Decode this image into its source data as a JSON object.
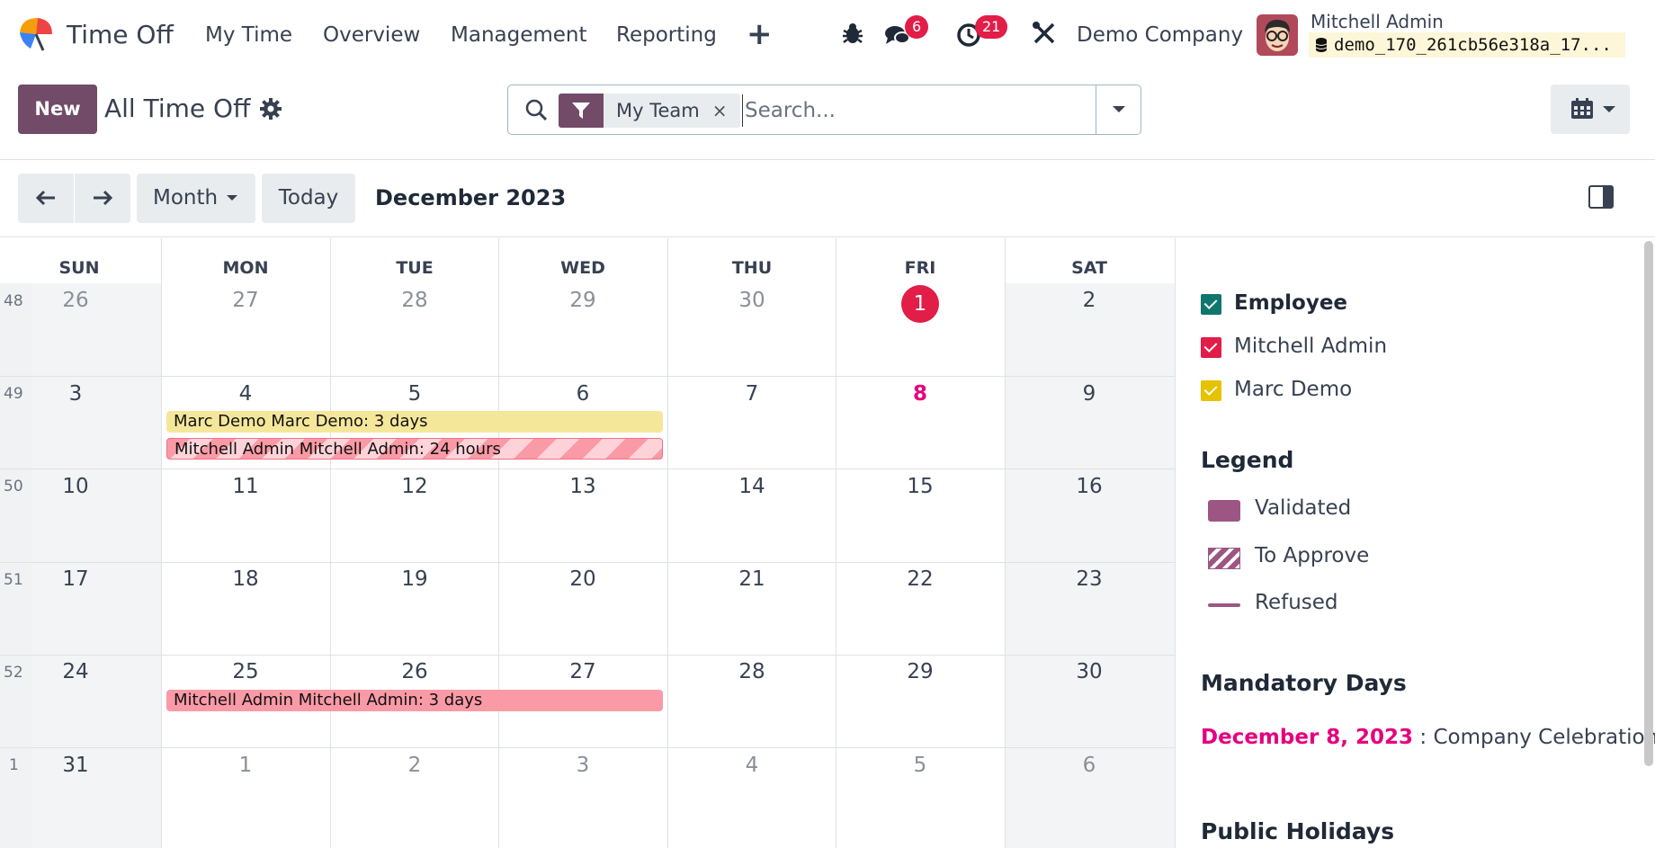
{
  "nav": {
    "app_name": "Time Off",
    "menu": [
      "My Time",
      "Overview",
      "Management",
      "Reporting"
    ],
    "plus": "+",
    "messages_badge": "6",
    "activities_badge": "21",
    "company": "Demo Company",
    "user": "Mitchell Admin",
    "db": "demo_170_261cb56e318a_17..."
  },
  "control": {
    "new_label": "New",
    "title": "All Time Off",
    "facet": "My Team",
    "facet_remove": "×",
    "search_placeholder": "Search..."
  },
  "toolbar": {
    "scale": "Month",
    "today": "Today",
    "period": "December 2023"
  },
  "calendar": {
    "weekdays": [
      "SUN",
      "MON",
      "TUE",
      "WED",
      "THU",
      "FRI",
      "SAT"
    ],
    "weeks": [
      {
        "num": "48",
        "days": [
          "26",
          "27",
          "28",
          "29",
          "30",
          "1",
          "2"
        ]
      },
      {
        "num": "49",
        "days": [
          "3",
          "4",
          "5",
          "6",
          "7",
          "8",
          "9"
        ]
      },
      {
        "num": "50",
        "days": [
          "10",
          "11",
          "12",
          "13",
          "14",
          "15",
          "16"
        ]
      },
      {
        "num": "51",
        "days": [
          "17",
          "18",
          "19",
          "20",
          "21",
          "22",
          "23"
        ]
      },
      {
        "num": "52",
        "days": [
          "24",
          "25",
          "26",
          "27",
          "28",
          "29",
          "30"
        ]
      },
      {
        "num": "1",
        "days": [
          "31",
          "1",
          "2",
          "3",
          "4",
          "5",
          "6"
        ]
      }
    ],
    "events": {
      "marc": "Marc Demo Marc Demo: 3 days",
      "mitchell_hours": "Mitchell Admin Mitchell Admin: 24 hours",
      "mitchell_days": "Mitchell Admin Mitchell Admin: 3 days"
    }
  },
  "side": {
    "filters": [
      "Employee",
      "Mitchell Admin",
      "Marc Demo"
    ],
    "legend_title": "Legend",
    "legend": [
      "Validated",
      "To Approve",
      "Refused"
    ],
    "mandatory_title": "Mandatory Days",
    "mandatory_date": "December 8, 2023",
    "mandatory_sep": " : ",
    "mandatory_name": "Company Celebration",
    "public_title": "Public Holidays"
  },
  "colors": {
    "brand": "#714b67",
    "employee_filter": "#0f766e",
    "mitchell_filter": "#e11d48",
    "marc_filter": "#e6c200"
  }
}
